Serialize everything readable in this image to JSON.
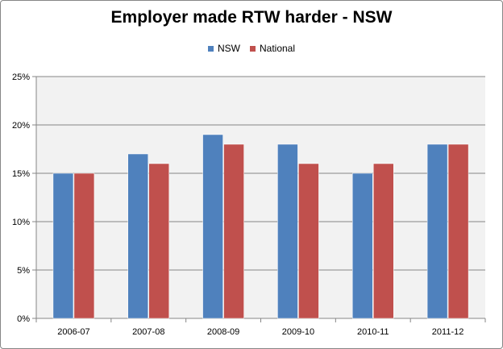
{
  "chart_data": {
    "type": "bar",
    "title": "Employer made RTW harder - NSW",
    "categories": [
      "2006-07",
      "2007-08",
      "2008-09",
      "2009-10",
      "2010-11",
      "2011-12"
    ],
    "series": [
      {
        "name": "NSW",
        "values": [
          15,
          17,
          19,
          18,
          15,
          18
        ],
        "color": "#4F81BD"
      },
      {
        "name": "National",
        "values": [
          15,
          16,
          18,
          16,
          16,
          18
        ],
        "color": "#C0504D"
      }
    ],
    "ylim": [
      0,
      25
    ],
    "yticks": [
      0,
      5,
      10,
      15,
      20,
      25
    ],
    "ytick_labels": [
      "0%",
      "5%",
      "10%",
      "15%",
      "20%",
      "25%"
    ],
    "grid": true,
    "legend_position": "top",
    "plot_background": "#F2F2F2"
  }
}
